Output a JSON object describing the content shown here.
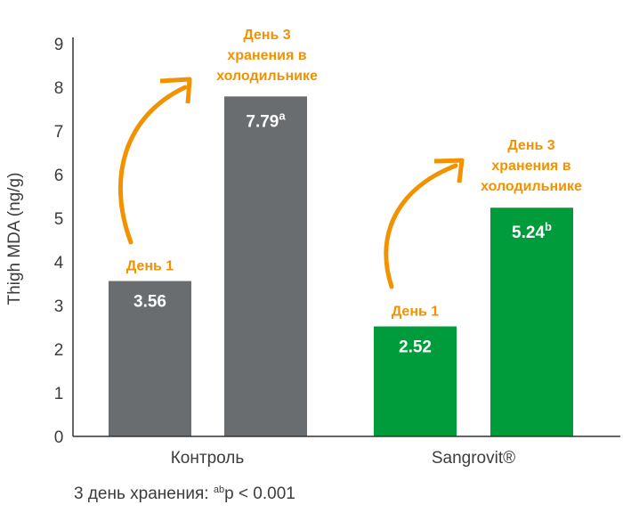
{
  "chart_data": {
    "type": "bar",
    "ylabel": "Thigh MDA (ng/g)",
    "ylim": [
      0,
      9
    ],
    "yticks": [
      0,
      1,
      2,
      3,
      4,
      5,
      6,
      7,
      8,
      9
    ],
    "categories": [
      "Контроль",
      "Sangrovit®"
    ],
    "series": [
      {
        "name": "День 1",
        "values": [
          3.56,
          2.52
        ],
        "labels": [
          "3.56",
          "2.52"
        ],
        "sup": [
          "",
          ""
        ]
      },
      {
        "name": "День 3 хранения в холодильнике",
        "values": [
          7.79,
          5.24
        ],
        "labels": [
          "7.79",
          "5.24"
        ],
        "sup": [
          "a",
          "b"
        ]
      }
    ],
    "day1_label": "День 1",
    "day3_label_lines": [
      "День 3",
      "хранения в",
      "холодильнике"
    ],
    "colors": {
      "control": "#6a6d70",
      "sangrovit": "#009b3a",
      "annotation": "#f39200"
    },
    "footnote": {
      "prefix": "3 день хранения: ",
      "sup": "ab",
      "suffix": "p < 0.001"
    }
  }
}
